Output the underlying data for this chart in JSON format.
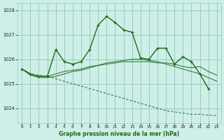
{
  "title": "Graphe pression niveau de la mer (hPa)",
  "background_color": "#ceeee8",
  "grid_color": "#99ccbb",
  "line_color": "#1a6b1a",
  "ylim": [
    1023.4,
    1028.3
  ],
  "xlim": [
    -0.5,
    23.5
  ],
  "yticks": [
    1024,
    1025,
    1026,
    1027,
    1028
  ],
  "xticks": [
    0,
    1,
    2,
    3,
    4,
    5,
    6,
    7,
    8,
    9,
    10,
    11,
    12,
    13,
    14,
    15,
    16,
    17,
    18,
    19,
    20,
    21,
    22,
    23
  ],
  "series": {
    "zigzag": [
      1025.6,
      1025.4,
      1025.3,
      1025.3,
      1026.4,
      1025.9,
      1025.8,
      1025.9,
      1026.4,
      1027.4,
      1027.75,
      1027.5,
      1027.2,
      1027.1,
      1026.05,
      1026.0,
      1026.45,
      1026.45,
      1025.8,
      1026.1,
      1025.9,
      1025.4,
      1024.8,
      null
    ],
    "diagonal": [
      1025.6,
      1025.4,
      1025.35,
      1025.3,
      1025.2,
      1025.1,
      1025.0,
      1024.9,
      1024.8,
      1024.7,
      1024.6,
      1024.5,
      1024.4,
      1024.3,
      1024.2,
      1024.1,
      1024.0,
      1023.9,
      1023.85,
      1023.8,
      1023.75,
      1023.75,
      1023.72,
      1023.7
    ],
    "smooth1": [
      1025.6,
      1025.4,
      1025.3,
      1025.3,
      1025.4,
      1025.5,
      1025.55,
      1025.6,
      1025.7,
      1025.75,
      1025.8,
      1025.85,
      1025.9,
      1025.9,
      1025.9,
      1025.9,
      1025.85,
      1025.85,
      1025.8,
      1025.7,
      1025.65,
      1025.7,
      1025.5,
      1025.35
    ],
    "smooth2": [
      1025.6,
      1025.35,
      1025.25,
      1025.25,
      1025.3,
      1025.4,
      1025.5,
      1025.55,
      1025.65,
      1025.75,
      1025.85,
      1025.9,
      1025.95,
      1026.0,
      1026.0,
      1025.95,
      1025.9,
      1025.8,
      1025.7,
      1025.6,
      1025.5,
      1025.4,
      1025.25,
      1025.1
    ]
  }
}
